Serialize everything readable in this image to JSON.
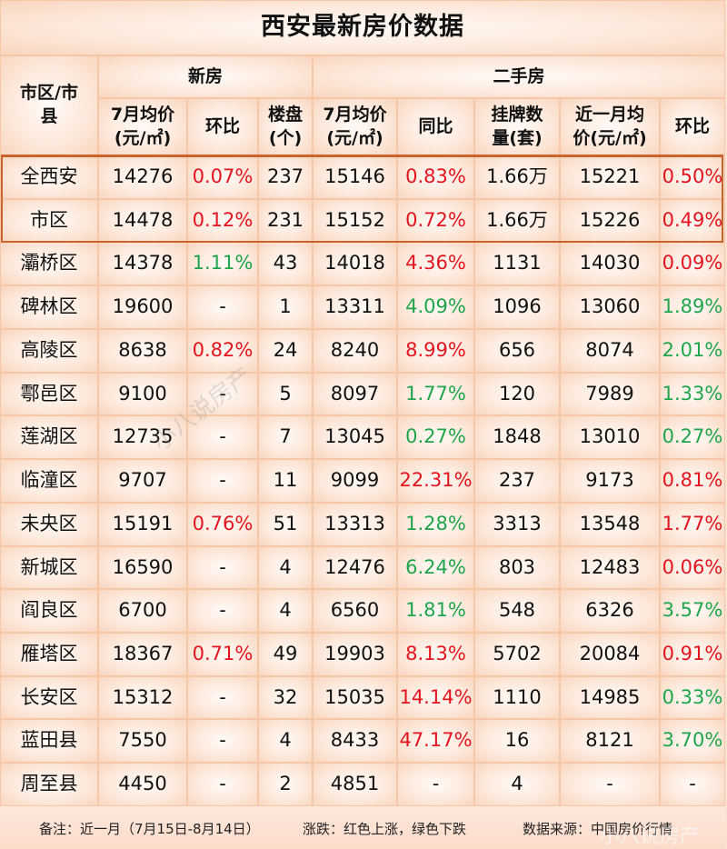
{
  "title": "西安最新房价数据",
  "header": {
    "region_label": "市区/市县",
    "region_label_line1": "市区/市",
    "region_label_line2": "县",
    "new_house_group": "新房",
    "second_hand_group": "二手房",
    "new_columns": [
      {
        "line1": "7月均价",
        "line2": "(元/㎡)"
      },
      {
        "line1": "环比",
        "line2": ""
      },
      {
        "line1": "楼盘",
        "line2": "(个)"
      }
    ],
    "second_columns": [
      {
        "line1": "7月均价",
        "line2": "(元/㎡)"
      },
      {
        "line1": "同比",
        "line2": ""
      },
      {
        "line1": "挂牌数",
        "line2": "量(套)"
      },
      {
        "line1": "近一月均",
        "line2": "价(元/㎡)"
      },
      {
        "line1": "环比",
        "line2": ""
      }
    ]
  },
  "colors": {
    "rise": "#e3141e",
    "fall": "#1fa54c",
    "highlight_border": "#c9652c",
    "grid": "#f6c7a6"
  },
  "rows": [
    {
      "region": "全西安",
      "new_price": "14276",
      "new_mom": "0.07%",
      "new_mom_dir": "red",
      "projects": "237",
      "sh_price": "15146",
      "sh_yoy": "0.83%",
      "sh_yoy_dir": "red",
      "listings": "1.66万",
      "recent_price": "15221",
      "sh_mom": "0.50%",
      "sh_mom_dir": "red"
    },
    {
      "region": "市区",
      "new_price": "14478",
      "new_mom": "0.12%",
      "new_mom_dir": "red",
      "projects": "231",
      "sh_price": "15152",
      "sh_yoy": "0.72%",
      "sh_yoy_dir": "red",
      "listings": "1.66万",
      "recent_price": "15226",
      "sh_mom": "0.49%",
      "sh_mom_dir": "red"
    },
    {
      "region": "灞桥区",
      "new_price": "14378",
      "new_mom": "1.11%",
      "new_mom_dir": "green",
      "projects": "43",
      "sh_price": "14018",
      "sh_yoy": "4.36%",
      "sh_yoy_dir": "red",
      "listings": "1131",
      "recent_price": "14030",
      "sh_mom": "0.09%",
      "sh_mom_dir": "red"
    },
    {
      "region": "碑林区",
      "new_price": "19600",
      "new_mom": "-",
      "new_mom_dir": "plain",
      "projects": "1",
      "sh_price": "13311",
      "sh_yoy": "4.09%",
      "sh_yoy_dir": "green",
      "listings": "1096",
      "recent_price": "13060",
      "sh_mom": "1.89%",
      "sh_mom_dir": "green"
    },
    {
      "region": "高陵区",
      "new_price": "8638",
      "new_mom": "0.82%",
      "new_mom_dir": "red",
      "projects": "24",
      "sh_price": "8240",
      "sh_yoy": "8.99%",
      "sh_yoy_dir": "red",
      "listings": "656",
      "recent_price": "8074",
      "sh_mom": "2.01%",
      "sh_mom_dir": "green"
    },
    {
      "region": "鄠邑区",
      "new_price": "9100",
      "new_mom": "-",
      "new_mom_dir": "plain",
      "projects": "5",
      "sh_price": "8097",
      "sh_yoy": "1.77%",
      "sh_yoy_dir": "green",
      "listings": "120",
      "recent_price": "7989",
      "sh_mom": "1.33%",
      "sh_mom_dir": "green"
    },
    {
      "region": "莲湖区",
      "new_price": "12735",
      "new_mom": "-",
      "new_mom_dir": "plain",
      "projects": "7",
      "sh_price": "13045",
      "sh_yoy": "0.27%",
      "sh_yoy_dir": "green",
      "listings": "1848",
      "recent_price": "13010",
      "sh_mom": "0.27%",
      "sh_mom_dir": "green"
    },
    {
      "region": "临潼区",
      "new_price": "9707",
      "new_mom": "-",
      "new_mom_dir": "plain",
      "projects": "11",
      "sh_price": "9099",
      "sh_yoy": "22.31%",
      "sh_yoy_dir": "red",
      "listings": "237",
      "recent_price": "9173",
      "sh_mom": "0.81%",
      "sh_mom_dir": "red"
    },
    {
      "region": "未央区",
      "new_price": "15191",
      "new_mom": "0.76%",
      "new_mom_dir": "red",
      "projects": "51",
      "sh_price": "13313",
      "sh_yoy": "1.28%",
      "sh_yoy_dir": "green",
      "listings": "3313",
      "recent_price": "13548",
      "sh_mom": "1.77%",
      "sh_mom_dir": "red"
    },
    {
      "region": "新城区",
      "new_price": "16590",
      "new_mom": "-",
      "new_mom_dir": "plain",
      "projects": "4",
      "sh_price": "12476",
      "sh_yoy": "6.24%",
      "sh_yoy_dir": "green",
      "listings": "803",
      "recent_price": "12483",
      "sh_mom": "0.06%",
      "sh_mom_dir": "red"
    },
    {
      "region": "阎良区",
      "new_price": "6700",
      "new_mom": "-",
      "new_mom_dir": "plain",
      "projects": "4",
      "sh_price": "6560",
      "sh_yoy": "1.81%",
      "sh_yoy_dir": "green",
      "listings": "548",
      "recent_price": "6326",
      "sh_mom": "3.57%",
      "sh_mom_dir": "green"
    },
    {
      "region": "雁塔区",
      "new_price": "18367",
      "new_mom": "0.71%",
      "new_mom_dir": "red",
      "projects": "49",
      "sh_price": "19903",
      "sh_yoy": "8.13%",
      "sh_yoy_dir": "red",
      "listings": "5702",
      "recent_price": "20084",
      "sh_mom": "0.91%",
      "sh_mom_dir": "red"
    },
    {
      "region": "长安区",
      "new_price": "15312",
      "new_mom": "-",
      "new_mom_dir": "plain",
      "projects": "32",
      "sh_price": "15035",
      "sh_yoy": "14.14%",
      "sh_yoy_dir": "red",
      "listings": "1110",
      "recent_price": "14985",
      "sh_mom": "0.33%",
      "sh_mom_dir": "green"
    },
    {
      "region": "蓝田县",
      "new_price": "7550",
      "new_mom": "-",
      "new_mom_dir": "plain",
      "projects": "4",
      "sh_price": "8433",
      "sh_yoy": "47.17%",
      "sh_yoy_dir": "red",
      "listings": "16",
      "recent_price": "8121",
      "sh_mom": "3.70%",
      "sh_mom_dir": "green"
    },
    {
      "region": "周至县",
      "new_price": "4450",
      "new_mom": "-",
      "new_mom_dir": "plain",
      "projects": "2",
      "sh_price": "4851",
      "sh_yoy": "-",
      "sh_yoy_dir": "plain",
      "listings": "4",
      "recent_price": "-",
      "sh_mom": "-",
      "sh_mom_dir": "plain"
    }
  ],
  "footer": {
    "note": "备注：近一月（7月15日-8月14日）",
    "legend": "涨跌：红色上涨，绿色下跌",
    "source": "数据来源：中国房价行情"
  },
  "watermark": "小八说房产"
}
